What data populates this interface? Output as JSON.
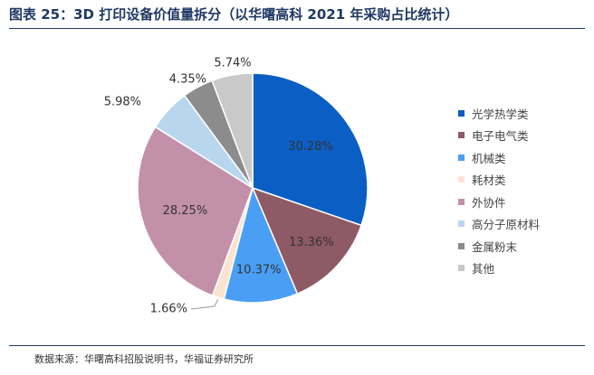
{
  "title": "图表 25：3D 打印设备价值量拆分（以华曙高科 2021 年采购占比统计）",
  "source": "数据来源：华曙高科招股说明书，华福证券研究所",
  "chart_data": {
    "type": "pie",
    "title": "",
    "slices": [
      {
        "name": "光学热学类",
        "value": 30.28,
        "label": "30.28%",
        "color": "#0b5fc4"
      },
      {
        "name": "电子电气类",
        "value": 13.36,
        "label": "13.36%",
        "color": "#8e5a66"
      },
      {
        "name": "机械类",
        "value": 10.37,
        "label": "10.37%",
        "color": "#4a9ff5"
      },
      {
        "name": "耗材类",
        "value": 1.66,
        "label": "1.66%",
        "color": "#fbe3d3"
      },
      {
        "name": "外协件",
        "value": 28.25,
        "label": "28.25%",
        "color": "#c390aa"
      },
      {
        "name": "高分子原材料",
        "value": 5.98,
        "label": "5.98%",
        "color": "#b9d6ef"
      },
      {
        "name": "金属粉末",
        "value": 4.35,
        "label": "4.35%",
        "color": "#8c8c8c"
      },
      {
        "name": "其他",
        "value": 5.74,
        "label": "5.74%",
        "color": "#c9c9c9"
      }
    ],
    "legend_position": "right"
  }
}
